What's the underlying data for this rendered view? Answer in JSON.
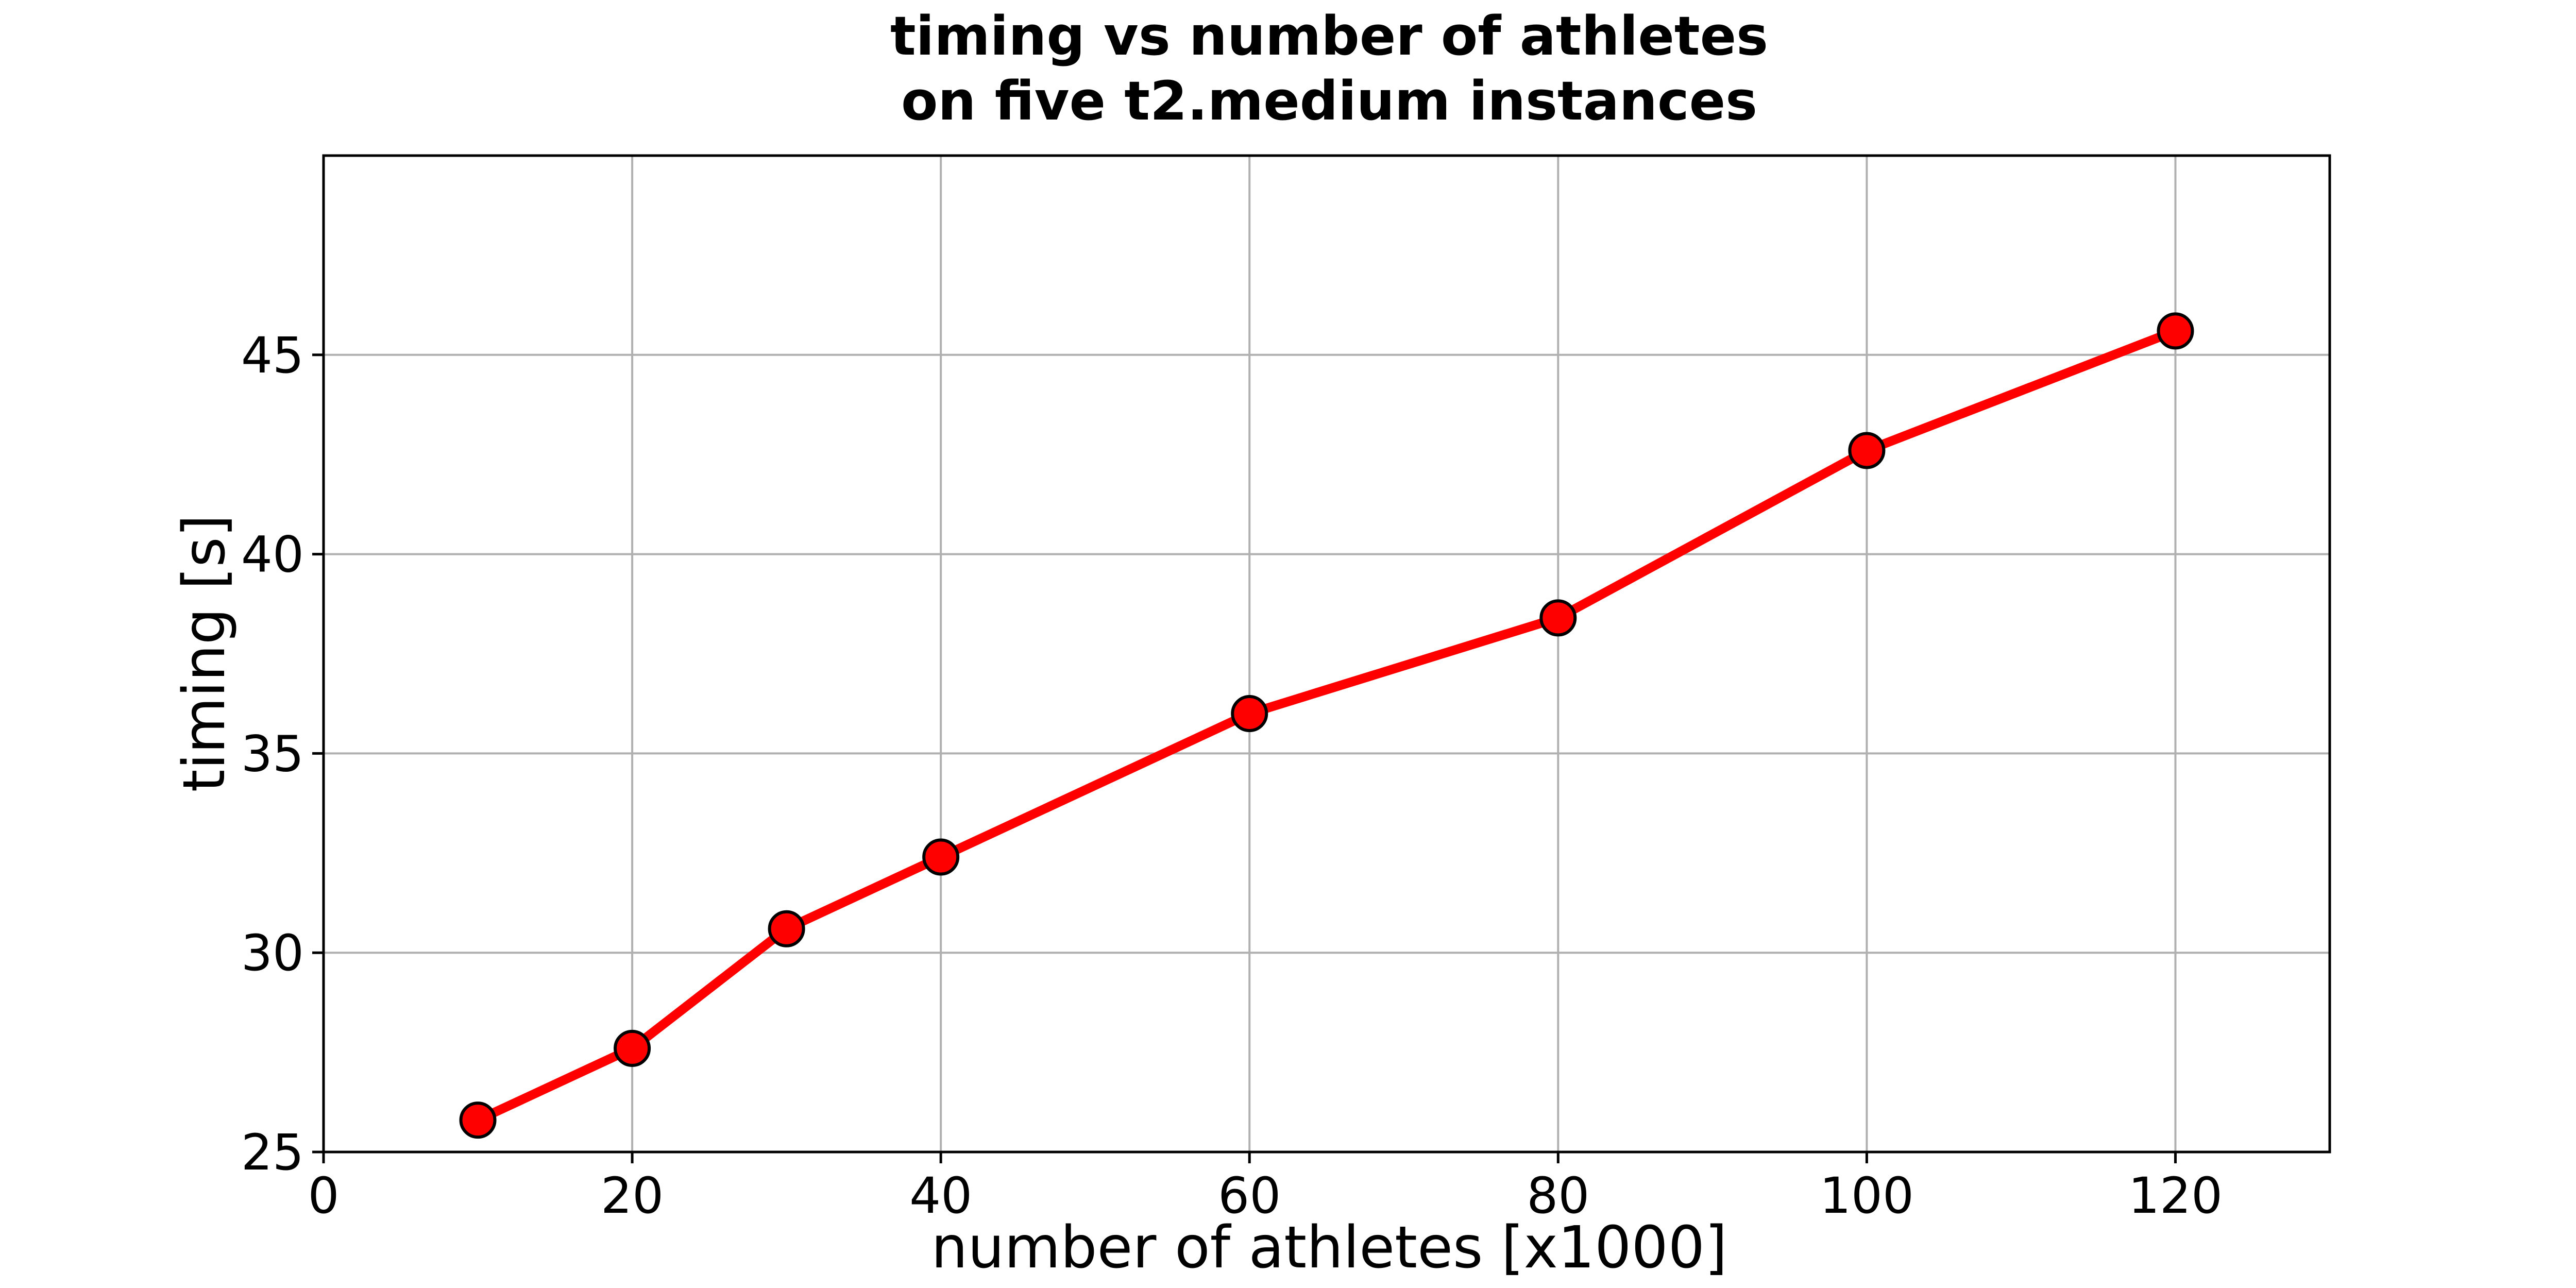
{
  "chart_data": {
    "type": "line",
    "title": "timing vs number of athletes\non five t2.medium instances",
    "title_lines": [
      "timing vs number of athletes",
      "on five t2.medium instances"
    ],
    "xlabel": "number of athletes [x1000]",
    "ylabel": "timing [s]",
    "xlim": [
      0,
      130
    ],
    "ylim": [
      25,
      50
    ],
    "xticks": [
      0,
      20,
      40,
      60,
      80,
      100,
      120
    ],
    "yticks": [
      25,
      30,
      35,
      40,
      45
    ],
    "grid": true,
    "series": [
      {
        "color": "#ff0000",
        "marker_edge_color": "#000000",
        "x": [
          10,
          20,
          30,
          40,
          60,
          80,
          100,
          120
        ],
        "y": [
          25.8,
          27.6,
          30.6,
          32.4,
          36.0,
          38.4,
          42.6,
          45.6
        ]
      }
    ]
  }
}
